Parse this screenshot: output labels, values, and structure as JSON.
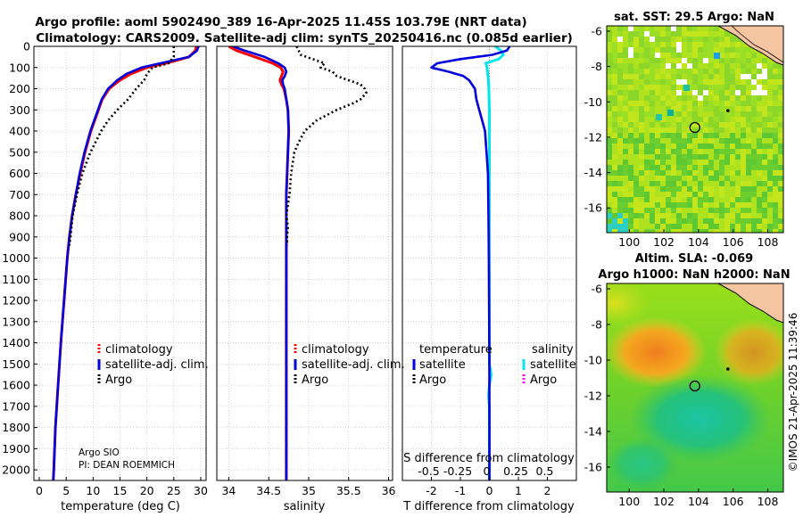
{
  "header": {
    "title_line1": "Argo profile: aoml 5902490_389 16-Apr-2025 11.45S 103.79E (NRT data)",
    "title_line2": "Climatology: CARS2009. Satellite-adj clim: synTS_20250416.nc (0.085d earlier)"
  },
  "footer": {
    "credit": "©IMOS 21-Apr-2025 11:39:46",
    "argo_agency": "Argo SIO",
    "pi": "PI: DEAN ROEMMICH"
  },
  "colors": {
    "climatology": "#ff0000",
    "satellite_adj": "#0000dd",
    "argo": "#000000",
    "sat_salinity": "#00e5ee",
    "argo_salinity": "#ee00ee",
    "land": "#f5c4a0"
  },
  "chart_data": [
    {
      "type": "line",
      "name": "temperature_profile",
      "xlabel": "temperature (deg C)",
      "xlim": [
        -1,
        31
      ],
      "ylim": [
        2050,
        0
      ],
      "xticks": [
        "0",
        "5",
        "10",
        "15",
        "20",
        "25",
        "30"
      ],
      "xtick_values": [
        0,
        5,
        10,
        15,
        20,
        25,
        30
      ],
      "yticks": [
        "0",
        "100",
        "200",
        "300",
        "400",
        "500",
        "600",
        "700",
        "800",
        "900",
        "1000",
        "1100",
        "1200",
        "1300",
        "1400",
        "1500",
        "1600",
        "1700",
        "1800",
        "1900",
        "2000"
      ],
      "ytick_values": [
        0,
        100,
        200,
        300,
        400,
        500,
        600,
        700,
        800,
        900,
        1000,
        1100,
        1200,
        1300,
        1400,
        1500,
        1600,
        1700,
        1800,
        1900,
        2000
      ],
      "legend": [
        "climatology",
        "satellite-adj. clim.",
        "Argo"
      ],
      "legend_placement": "lower-right",
      "series": [
        {
          "name": "climatology",
          "depth": [
            0,
            20,
            50,
            80,
            100,
            130,
            160,
            200,
            250,
            300,
            400,
            500,
            600,
            700,
            800,
            900,
            1000,
            1200,
            1400,
            1600,
            1800,
            2000,
            2050
          ],
          "values": [
            29.2,
            29.0,
            27.8,
            23.5,
            20.0,
            17.0,
            15.0,
            13.0,
            11.7,
            11.0,
            9.6,
            8.5,
            7.6,
            6.8,
            6.1,
            5.6,
            5.2,
            4.6,
            4.0,
            3.5,
            3.0,
            2.7,
            2.6
          ]
        },
        {
          "name": "satellite-adj. clim.",
          "depth": [
            0,
            20,
            50,
            80,
            100,
            130,
            160,
            200,
            250,
            300,
            400,
            500,
            600,
            700,
            800,
            900,
            1000,
            1200,
            1400,
            1600,
            1800,
            2000,
            2050
          ],
          "values": [
            29.6,
            29.3,
            27.8,
            22.5,
            19.0,
            16.2,
            14.5,
            12.8,
            11.6,
            10.9,
            9.5,
            8.4,
            7.5,
            6.8,
            6.1,
            5.6,
            5.2,
            4.6,
            4.0,
            3.5,
            3.0,
            2.7,
            2.6
          ]
        },
        {
          "name": "Argo",
          "depth": [
            0,
            50,
            80,
            100,
            130,
            160,
            200,
            250,
            300,
            350,
            400,
            500,
            600,
            700,
            800,
            900,
            940
          ],
          "values": [
            25.0,
            25.0,
            24.0,
            21.0,
            20.0,
            19.5,
            18.0,
            16.5,
            14.5,
            12.8,
            11.5,
            9.5,
            8.0,
            7.0,
            6.2,
            5.8,
            5.6
          ]
        }
      ]
    },
    {
      "type": "line",
      "name": "salinity_profile",
      "xlabel": "salinity",
      "xlim": [
        33.85,
        36.05
      ],
      "ylim": [
        2050,
        0
      ],
      "xticks": [
        "34",
        "34.5",
        "35",
        "35.5",
        "36"
      ],
      "xtick_values": [
        34,
        34.5,
        35,
        35.5,
        36
      ],
      "legend": [
        "climatology",
        "satellite-adj. clim.",
        "Argo"
      ],
      "legend_placement": "lower-right",
      "series": [
        {
          "name": "climatology",
          "depth": [
            0,
            20,
            50,
            80,
            100,
            120,
            140,
            160,
            180,
            200,
            250,
            300,
            400,
            500,
            600,
            700,
            800,
            1000,
            1500,
            2000,
            2050
          ],
          "values": [
            34.0,
            34.1,
            34.33,
            34.55,
            34.65,
            34.68,
            34.66,
            34.64,
            34.66,
            34.69,
            34.72,
            34.74,
            34.75,
            34.74,
            34.73,
            34.72,
            34.72,
            34.72,
            34.72,
            34.72,
            34.72
          ]
        },
        {
          "name": "satellite-adj. clim.",
          "depth": [
            0,
            20,
            50,
            80,
            100,
            120,
            140,
            160,
            180,
            200,
            250,
            300,
            400,
            500,
            600,
            700,
            800,
            1000,
            1500,
            2000,
            2050
          ],
          "values": [
            34.05,
            34.2,
            34.45,
            34.62,
            34.7,
            34.72,
            34.7,
            34.67,
            34.68,
            34.7,
            34.72,
            34.74,
            34.75,
            34.74,
            34.73,
            34.72,
            34.72,
            34.72,
            34.72,
            34.72,
            34.72
          ]
        },
        {
          "name": "Argo",
          "depth": [
            0,
            40,
            60,
            80,
            100,
            120,
            140,
            160,
            180,
            200,
            220,
            250,
            270,
            300,
            350,
            400,
            450,
            500,
            550,
            600,
            650,
            700,
            750,
            800,
            850,
            900,
            940
          ],
          "values": [
            34.85,
            34.9,
            35.05,
            35.2,
            35.15,
            35.3,
            35.35,
            35.5,
            35.65,
            35.7,
            35.72,
            35.65,
            35.55,
            35.35,
            35.1,
            34.95,
            34.88,
            34.82,
            34.8,
            34.78,
            34.77,
            34.76,
            34.74,
            34.72,
            34.74,
            34.73,
            34.73
          ]
        }
      ]
    },
    {
      "type": "line",
      "name": "difference_profile",
      "xlabel": "T difference from climatology",
      "xlabel_top": "S difference from climatology",
      "xlim": [
        -3,
        3
      ],
      "ylim": [
        2050,
        0
      ],
      "xticks": [
        "-2",
        "-1",
        "0",
        "1",
        "2"
      ],
      "xtick_values": [
        -2,
        -1,
        0,
        1,
        2
      ],
      "s_ticks": [
        "-0.5",
        "-0.25",
        "0",
        "0.25",
        "0.5"
      ],
      "s_tick_values": [
        -0.5,
        -0.25,
        0,
        0.25,
        0.5
      ],
      "legend_headers": [
        "temperature",
        "salinity"
      ],
      "legend": [
        "satellite",
        "Argo",
        "satellite",
        "Argo"
      ],
      "legend_placement": "lower",
      "series": [
        {
          "name": "temperature satellite",
          "depth": [
            0,
            20,
            40,
            60,
            80,
            100,
            120,
            140,
            160,
            180,
            200,
            250,
            300,
            350,
            400,
            500,
            600,
            800,
            1000,
            1500,
            2000,
            2050
          ],
          "values": [
            0.7,
            0.6,
            0.1,
            -1.0,
            -1.8,
            -2.0,
            -1.4,
            -0.9,
            -0.7,
            -0.6,
            -0.5,
            -0.45,
            -0.35,
            -0.25,
            -0.15,
            -0.1,
            -0.05,
            -0.03,
            -0.02,
            0,
            0,
            0
          ]
        },
        {
          "name": "salinity satellite",
          "depth": [
            0,
            20,
            40,
            60,
            80,
            100,
            150,
            200,
            300,
            400,
            500,
            700,
            900,
            1100,
            1300,
            1500,
            1550,
            1600,
            1650,
            1700,
            1900,
            2000,
            2050
          ],
          "values": [
            0.05,
            0.1,
            0.12,
            0.08,
            -0.03,
            -0.02,
            -0.01,
            -0.005,
            0.0,
            0.0,
            0.0,
            0.0,
            0.0,
            0.0,
            0.0,
            0.0,
            0.015,
            0.0,
            -0.008,
            0.0,
            0.0,
            0.0,
            0.0
          ]
        }
      ]
    },
    {
      "type": "heatmap",
      "name": "sst_map",
      "title": "sat. SST: 29.5 Argo: NaN",
      "xlim": [
        98.7,
        108.9
      ],
      "ylim": [
        -17.4,
        -5.7
      ],
      "xticks": [
        "100",
        "102",
        "104",
        "106",
        "108"
      ],
      "xtick_values": [
        100,
        102,
        104,
        106,
        108
      ],
      "yticks": [
        "-6",
        "-8",
        "-10",
        "-12",
        "-14",
        "-16"
      ],
      "ytick_values": [
        -6,
        -8,
        -10,
        -12,
        -14,
        -16
      ],
      "profile_marker": {
        "lon": 103.79,
        "lat": -11.45
      },
      "secondary_marker": {
        "lon": 105.7,
        "lat": -10.5
      }
    },
    {
      "type": "heatmap",
      "name": "sla_map",
      "title_line1": "Altim. SLA: -0.069",
      "title_line2": "Argo h1000: NaN h2000: NaN",
      "xlim": [
        98.7,
        108.9
      ],
      "ylim": [
        -17.4,
        -5.7
      ],
      "xticks": [
        "100",
        "102",
        "104",
        "106",
        "108"
      ],
      "xtick_values": [
        100,
        102,
        104,
        106,
        108
      ],
      "yticks": [
        "-6",
        "-8",
        "-10",
        "-12",
        "-14",
        "-16"
      ],
      "ytick_values": [
        -6,
        -8,
        -10,
        -12,
        -14,
        -16
      ],
      "profile_marker": {
        "lon": 103.79,
        "lat": -11.45
      },
      "secondary_marker": {
        "lon": 105.7,
        "lat": -10.5
      }
    }
  ]
}
